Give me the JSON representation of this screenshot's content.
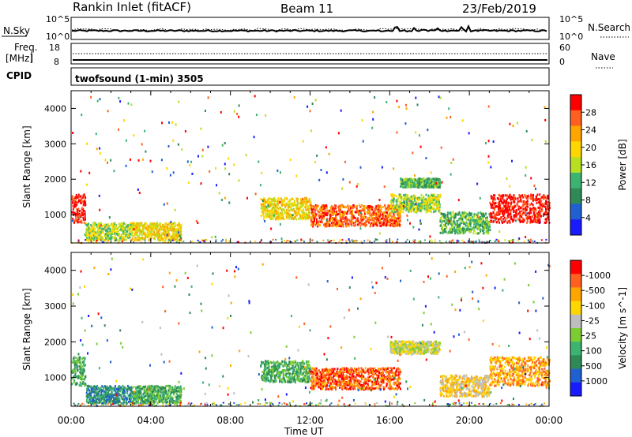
{
  "header": {
    "title": "Rankin Inlet (fitACF)",
    "beam": "Beam 11",
    "date": "23/Feb/2019"
  },
  "noise_panel": {
    "left_label": "N.Sky",
    "left_ticks": [
      "10^5",
      "10^0"
    ],
    "right_label": "N.Search",
    "right_ticks": [
      "10^5",
      "10^0"
    ]
  },
  "freq_panel": {
    "left_label_1": "Freq.",
    "left_label_2": "[MHz]",
    "left_ticks": [
      "18",
      "8"
    ],
    "right_label": "Nave",
    "right_ticks": [
      "60",
      "0"
    ],
    "cpid_label": "CPID",
    "program": "twofsound (1-min) 3505"
  },
  "chart_data": [
    {
      "type": "heatmap",
      "name": "Power",
      "ylabel": "Slant Range [km]",
      "ylim": [
        200,
        4500
      ],
      "yticks": [
        1000,
        2000,
        3000,
        4000
      ],
      "xlim": [
        0,
        24
      ],
      "colorbar_label": "Power [dB]",
      "colorbar_ticks": [
        "4",
        "8",
        "12",
        "16",
        "20",
        "24",
        "28"
      ],
      "colors": [
        "#1a1aff",
        "#2060d0",
        "#2e8b57",
        "#3cb371",
        "#b8e020",
        "#ffd700",
        "#ffa500",
        "#ff6020",
        "#ff0000"
      ],
      "regions": [
        {
          "t0": 0.0,
          "t1": 0.7,
          "r0": 800,
          "r1": 1600,
          "level": 8
        },
        {
          "t0": 0.7,
          "t1": 3.0,
          "r0": 300,
          "r1": 800,
          "level": 4
        },
        {
          "t0": 3.0,
          "t1": 5.5,
          "r0": 300,
          "r1": 800,
          "level": 5
        },
        {
          "t0": 9.5,
          "t1": 12.0,
          "r0": 900,
          "r1": 1500,
          "level": 5
        },
        {
          "t0": 12.0,
          "t1": 16.5,
          "r0": 700,
          "r1": 1300,
          "level": 7
        },
        {
          "t0": 16.0,
          "t1": 18.5,
          "r0": 1100,
          "r1": 1600,
          "level": 4
        },
        {
          "t0": 16.5,
          "t1": 18.5,
          "r0": 1800,
          "r1": 2050,
          "level": 3
        },
        {
          "t0": 18.5,
          "t1": 21.0,
          "r0": 500,
          "r1": 1100,
          "level": 3
        },
        {
          "t0": 21.0,
          "t1": 24.0,
          "r0": 800,
          "r1": 1600,
          "level": 8
        }
      ]
    },
    {
      "type": "heatmap",
      "name": "Velocity",
      "ylabel": "Slant Range [km]",
      "ylim": [
        200,
        4500
      ],
      "yticks": [
        1000,
        2000,
        3000,
        4000
      ],
      "xlim": [
        0,
        24
      ],
      "colorbar_label": "Velocity [m s^-1]",
      "colorbar_ticks": [
        "1000",
        "500",
        "100",
        "25",
        "-25",
        "-100",
        "-500",
        "-1000"
      ],
      "colors": [
        "#1a1aff",
        "#2060d0",
        "#2e8b57",
        "#3cb371",
        "#7ccd32",
        "#bebebe",
        "#ffd700",
        "#ffa500",
        "#ff6020",
        "#ff0000"
      ],
      "regions": [
        {
          "t0": 0.0,
          "t1": 0.7,
          "r0": 800,
          "r1": 1600,
          "level": 3
        },
        {
          "t0": 0.7,
          "t1": 3.0,
          "r0": 300,
          "r1": 800,
          "level": 2
        },
        {
          "t0": 3.0,
          "t1": 5.5,
          "r0": 300,
          "r1": 800,
          "level": 3
        },
        {
          "t0": 9.5,
          "t1": 12.0,
          "r0": 900,
          "r1": 1500,
          "level": 3
        },
        {
          "t0": 12.0,
          "t1": 16.5,
          "r0": 700,
          "r1": 1300,
          "level": 8
        },
        {
          "t0": 16.0,
          "t1": 18.5,
          "r0": 1700,
          "r1": 2050,
          "level": 5
        },
        {
          "t0": 18.5,
          "t1": 21.0,
          "r0": 500,
          "r1": 1100,
          "level": 6
        },
        {
          "t0": 21.0,
          "t1": 24.0,
          "r0": 800,
          "r1": 1600,
          "level": 7
        }
      ]
    }
  ],
  "xaxis": {
    "ticks": [
      "00:00",
      "04:00",
      "08:00",
      "12:00",
      "16:00",
      "20:00",
      "00:00"
    ],
    "label": "Time UT"
  }
}
